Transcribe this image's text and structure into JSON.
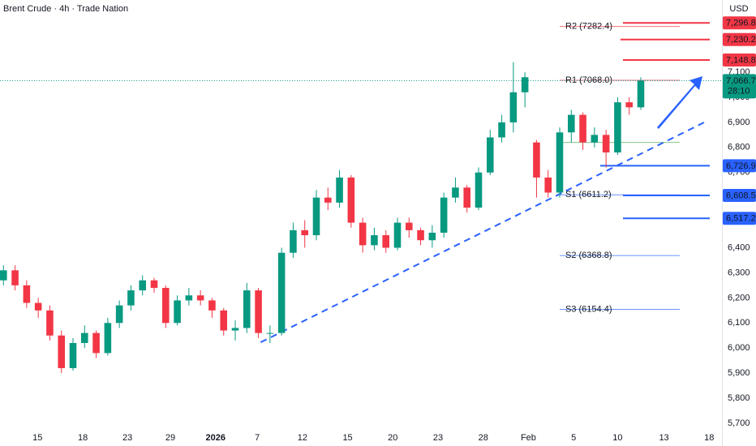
{
  "chart_data": {
    "type": "candlestick",
    "title": "Brent Crude · 4h · Trade Nation",
    "currency": "USD",
    "up_color": "#089981",
    "down_color": "#f23645",
    "x": [
      0,
      1,
      2,
      3,
      4,
      5,
      6,
      7,
      8,
      9,
      10,
      11,
      12,
      13,
      14,
      15,
      16,
      17,
      18,
      19,
      20,
      21,
      22,
      23,
      24,
      25,
      26,
      27,
      28,
      29,
      30,
      31,
      32,
      33,
      34,
      35,
      36,
      37,
      38,
      39,
      40,
      41,
      42,
      43,
      44,
      45,
      46,
      47,
      48,
      49,
      50,
      51,
      52,
      53,
      54,
      55
    ],
    "open": [
      6270,
      6310,
      6250,
      6180,
      6150,
      6050,
      5920,
      6020,
      6060,
      5980,
      6100,
      6170,
      6230,
      6270,
      6240,
      6100,
      6190,
      6210,
      6190,
      6150,
      6070,
      6080,
      6230,
      6060,
      6060,
      6380,
      6470,
      6450,
      6600,
      6580,
      6680,
      6500,
      6410,
      6450,
      6400,
      6500,
      6470,
      6430,
      6460,
      6600,
      6640,
      6560,
      6700,
      6840,
      6900,
      7020,
      6820,
      6680,
      6620,
      6860,
      6930,
      6820,
      6850,
      6780,
      6980,
      6960
    ],
    "high": [
      6330,
      6330,
      6270,
      6200,
      6170,
      6070,
      6040,
      6090,
      6070,
      6120,
      6190,
      6250,
      6290,
      6280,
      6250,
      6210,
      6240,
      6230,
      6200,
      6160,
      6110,
      6260,
      6240,
      6090,
      6400,
      6500,
      6510,
      6630,
      6640,
      6710,
      6690,
      6520,
      6480,
      6470,
      6520,
      6520,
      6480,
      6490,
      6620,
      6680,
      6650,
      6720,
      6870,
      6930,
      7140,
      7100,
      6830,
      6710,
      6880,
      6950,
      6940,
      6880,
      6870,
      7000,
      7000,
      7080
    ],
    "low": [
      6250,
      6230,
      6160,
      6120,
      6030,
      5900,
      5910,
      6000,
      5960,
      5970,
      6080,
      6150,
      6210,
      6220,
      6080,
      6090,
      6170,
      6170,
      6120,
      6050,
      6030,
      6060,
      6040,
      6020,
      6050,
      6360,
      6400,
      6430,
      6550,
      6560,
      6480,
      6380,
      6390,
      6380,
      6390,
      6440,
      6410,
      6400,
      6440,
      6580,
      6540,
      6550,
      6690,
      6820,
      6860,
      6960,
      6600,
      6600,
      6600,
      6820,
      6790,
      6800,
      6720,
      6770,
      6930,
      6950
    ],
    "close": [
      6310,
      6250,
      6180,
      6150,
      6050,
      5920,
      6020,
      6060,
      5980,
      6100,
      6170,
      6230,
      6270,
      6240,
      6100,
      6190,
      6210,
      6190,
      6150,
      6070,
      6080,
      6230,
      6060,
      6060,
      6380,
      6470,
      6450,
      6600,
      6580,
      6680,
      6500,
      6410,
      6450,
      6400,
      6500,
      6470,
      6430,
      6460,
      6600,
      6640,
      6560,
      6700,
      6840,
      6900,
      7020,
      7080,
      6680,
      6620,
      6860,
      6930,
      6820,
      6850,
      6780,
      6980,
      6960,
      7066.7
    ],
    "xlim": [
      -0.3,
      62
    ],
    "ylim": [
      5674,
      7388
    ],
    "xticks": [
      {
        "value": 2.94,
        "label": "15"
      },
      {
        "value": 6.85,
        "label": "18"
      },
      {
        "value": 10.7,
        "label": "23"
      },
      {
        "value": 14.4,
        "label": "29"
      },
      {
        "value": 18.3,
        "label": "2026"
      },
      {
        "value": 21.9,
        "label": "7"
      },
      {
        "value": 25.8,
        "label": "12"
      },
      {
        "value": 29.7,
        "label": "15"
      },
      {
        "value": 33.6,
        "label": "20"
      },
      {
        "value": 37.5,
        "label": "23"
      },
      {
        "value": 41.4,
        "label": "28"
      },
      {
        "value": 45.3,
        "label": "Feb"
      },
      {
        "value": 49.2,
        "label": "5"
      },
      {
        "value": 53.0,
        "label": "10"
      },
      {
        "value": 57.0,
        "label": "13"
      },
      {
        "value": 60.9,
        "label": "18"
      }
    ],
    "yticks": [
      {
        "value": 7100,
        "label": "7,100"
      },
      {
        "value": 7000,
        "label": "7,000"
      },
      {
        "value": 6900,
        "label": "6,900"
      },
      {
        "value": 6800,
        "label": "6,800"
      },
      {
        "value": 6700,
        "label": "6,700"
      },
      {
        "value": 6400,
        "label": "6,400"
      },
      {
        "value": 6300,
        "label": "6,300"
      },
      {
        "value": 6200,
        "label": "6,200"
      },
      {
        "value": 6100,
        "label": "6,100"
      },
      {
        "value": 6000,
        "label": "6,000"
      },
      {
        "value": 5900,
        "label": "5,900"
      },
      {
        "value": 5800,
        "label": "5,800"
      },
      {
        "value": 5700,
        "label": "5,700"
      }
    ],
    "last_price": {
      "value": 7066.7,
      "label": "7,066.7",
      "countdown": "28:10"
    },
    "levels": [
      {
        "value": 7296.8,
        "label": "7,296.8",
        "color": "#f23645"
      },
      {
        "value": 7230.2,
        "label": "7,230.2",
        "color": "#f23645"
      },
      {
        "value": 7148.8,
        "label": "7,148.8",
        "color": "#f23645"
      },
      {
        "value": 6726.9,
        "label": "6,726.9",
        "color": "#2962ff"
      },
      {
        "value": 6608.5,
        "label": "6,608.5",
        "color": "#2962ff"
      },
      {
        "value": 6517.2,
        "label": "6,517.2",
        "color": "#2962ff"
      }
    ],
    "pivots": [
      {
        "value": 7282.4,
        "label": "R2 (7282.4)",
        "color": "#f23645"
      },
      {
        "value": 7068.0,
        "label": "R1 (7068.0)",
        "color": "#f23645"
      },
      {
        "value": 6820,
        "color": "#4caf50"
      },
      {
        "value": 6611.2,
        "label": "S1 (6611.2)",
        "color": "#2962ff"
      },
      {
        "value": 6368.8,
        "label": "S2 (6368.8)",
        "color": "#2962ff"
      },
      {
        "value": 6154.4,
        "label": "S3 (6154.4)",
        "color": "#2962ff"
      }
    ],
    "trendline": {
      "x": [
        22.2,
        60.6
      ],
      "y": [
        6023,
        6903
      ],
      "color": "#2962ff"
    }
  }
}
